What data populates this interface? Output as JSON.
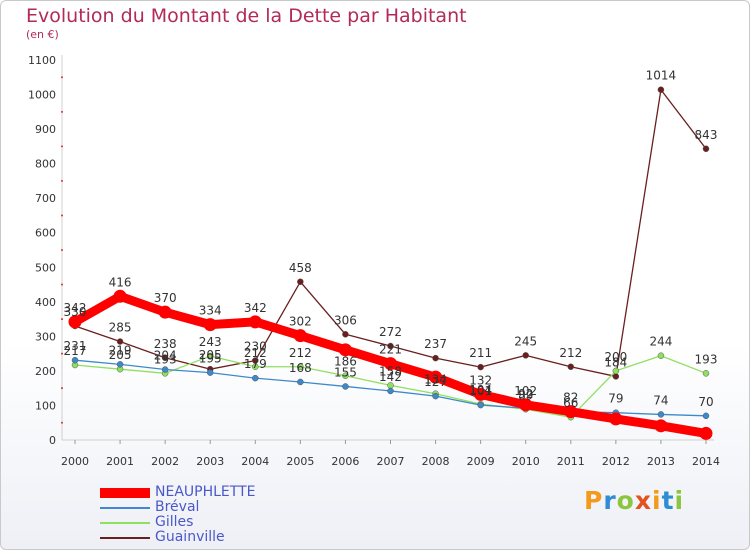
{
  "title": "Evolution du Montant de la Dette par Habitant",
  "unit_label": "(en €)",
  "logo_text": "Proxiti",
  "chart_data": {
    "type": "line",
    "title": "Evolution du Montant de la Dette par Habitant",
    "subtitle": "(en €)",
    "xlabel": "",
    "ylabel": "",
    "x": [
      "2000",
      "2001",
      "2002",
      "2003",
      "2004",
      "2005",
      "2006",
      "2007",
      "2008",
      "2009",
      "2010",
      "2011",
      "2012",
      "2013",
      "2014"
    ],
    "yticks": [
      0,
      100,
      200,
      300,
      400,
      500,
      600,
      700,
      800,
      900,
      1000,
      1100
    ],
    "ylim": [
      0,
      1100
    ],
    "grid": false,
    "legend_placement": "bottom-left",
    "series": [
      {
        "name": "NEAUPHLETTE",
        "color": "#ff0000",
        "values": [
          342,
          416,
          370,
          334,
          342,
          302,
          261,
          221,
          182,
          132,
          102,
          82,
          61,
          41,
          19
        ],
        "labels": [
          "342",
          "416",
          "370",
          "334",
          "342",
          "302",
          "",
          "221",
          "",
          "132",
          "102",
          "",
          "",
          "",
          ""
        ]
      },
      {
        "name": "Bréval",
        "color": "#3e89c9",
        "values": [
          231,
          219,
          204,
          195,
          179,
          168,
          155,
          142,
          127,
          101,
          92,
          82,
          79,
          74,
          70
        ],
        "labels": [
          "231",
          "219",
          "204",
          "195",
          "179",
          "168",
          "155",
          "142",
          "127",
          "101",
          "92",
          "82",
          "79",
          "74",
          "70"
        ]
      },
      {
        "name": "Gilles",
        "color": "#90e060",
        "values": [
          217,
          205,
          193,
          243,
          212,
          212,
          186,
          158,
          134,
          104,
          89,
          66,
          200,
          244,
          193
        ],
        "labels": [
          "217",
          "205",
          "193",
          "243",
          "212",
          "212",
          "186",
          "158",
          "134",
          "104",
          "89",
          "66",
          "200",
          "244",
          "193"
        ]
      },
      {
        "name": "Guainville",
        "color": "#6a1f1f",
        "values": [
          330,
          285,
          238,
          205,
          230,
          458,
          306,
          272,
          237,
          211,
          245,
          212,
          184,
          1014,
          843
        ],
        "labels": [
          "330",
          "285",
          "238",
          "205",
          "230",
          "458",
          "306",
          "272",
          "237",
          "211",
          "245",
          "212",
          "184",
          "1014",
          "843"
        ]
      }
    ]
  }
}
